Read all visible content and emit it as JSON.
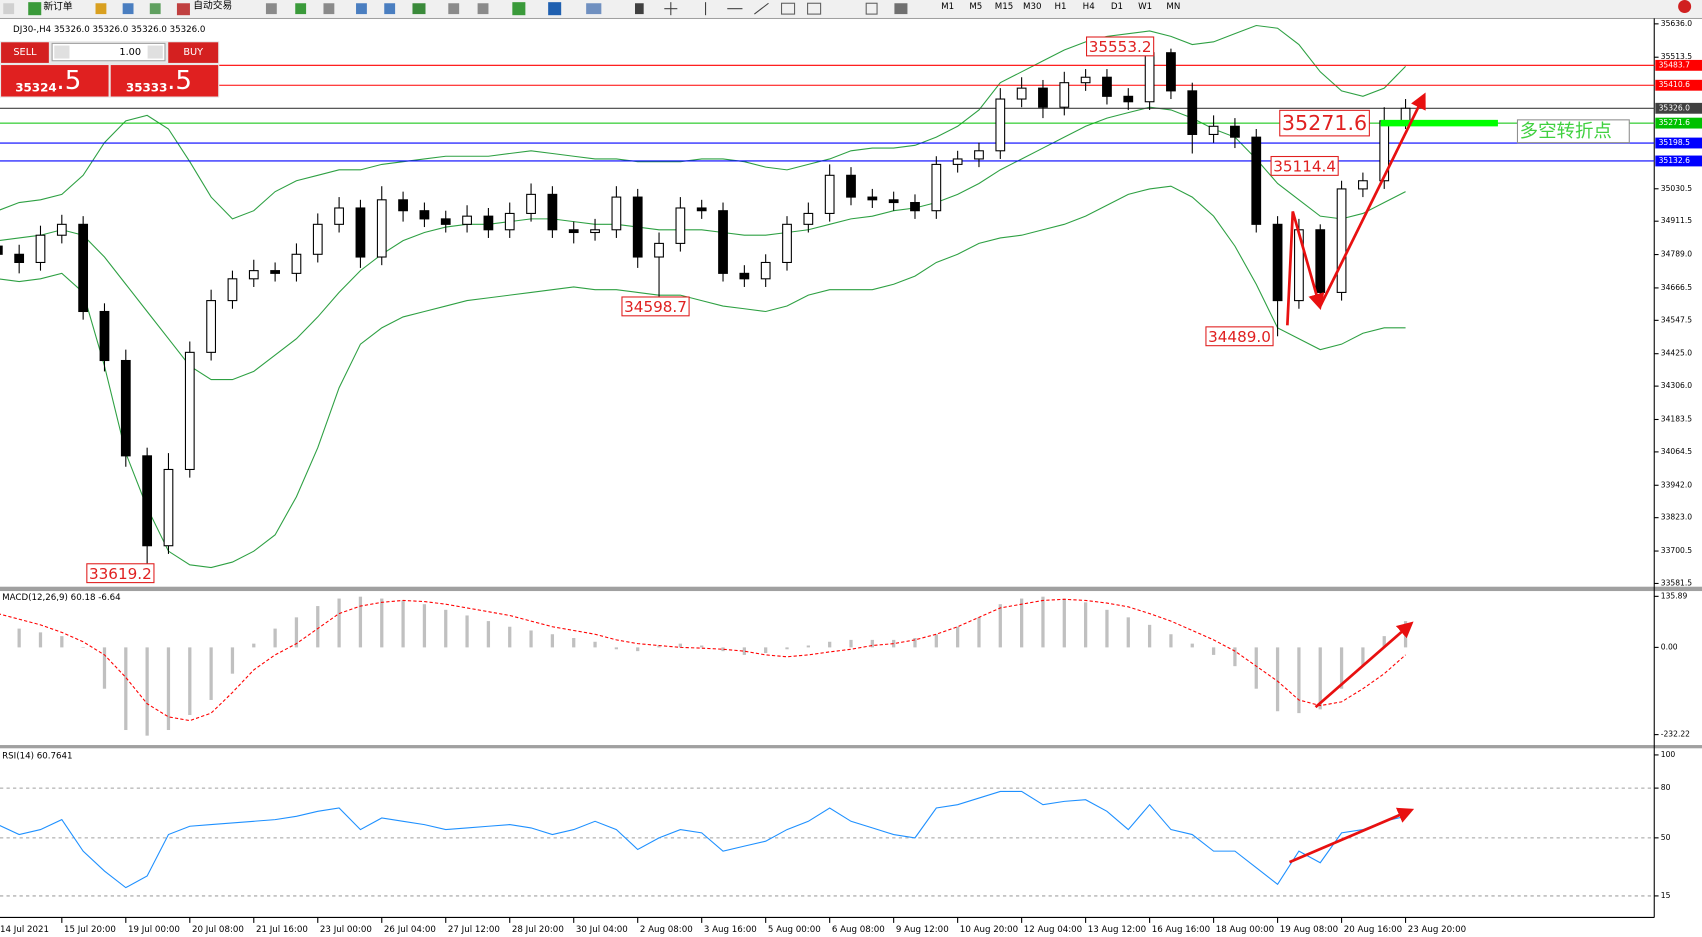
{
  "toolbar": {
    "new_order": "新订单",
    "auto_trade": "自动交易",
    "timeframes": [
      "M1",
      "M5",
      "M15",
      "M30",
      "H1",
      "H4",
      "D1",
      "W1",
      "MN"
    ]
  },
  "trade_panel": {
    "sell": "SELL",
    "buy": "BUY",
    "lots": "1.00",
    "bid": [
      "35324",
      ".5"
    ],
    "ask": [
      "35333",
      ".5"
    ]
  },
  "chart_data": [
    {
      "type": "candlestick",
      "title": "DJ30-,H4  35326.0 35326.0 35326.0 35326.0",
      "categories": [
        "14 Jul 2021",
        null,
        null,
        "15 Jul 20:00",
        null,
        null,
        "19 Jul 00:00",
        null,
        null,
        "20 Jul 08:00",
        null,
        null,
        "21 Jul 16:00",
        null,
        null,
        "23 Jul 00:00",
        null,
        null,
        "26 Jul 04:00",
        null,
        null,
        "27 Jul 12:00",
        null,
        null,
        "28 Jul 20:00",
        null,
        null,
        "30 Jul 04:00",
        null,
        null,
        "2 Aug 08:00",
        null,
        null,
        "3 Aug 16:00",
        null,
        null,
        "5 Aug 00:00",
        null,
        null,
        "6 Aug 08:00",
        null,
        null,
        "9 Aug 12:00",
        null,
        null,
        "10 Aug 20:00",
        null,
        null,
        "12 Aug 04:00",
        null,
        null,
        "13 Aug 12:00",
        null,
        null,
        "16 Aug 16:00",
        null,
        null,
        "18 Aug 00:00",
        null,
        null,
        "19 Aug 08:00",
        null,
        null,
        "20 Aug 16:00",
        null,
        null,
        "23 Aug 20:00"
      ],
      "open": [
        34820,
        34790,
        34760,
        34860,
        34900,
        34580,
        34400,
        34050,
        33720,
        34000,
        34430,
        34620,
        34700,
        34730,
        34720,
        34790,
        34900,
        34960,
        34780,
        34990,
        34950,
        34920,
        34900,
        34930,
        34880,
        34940,
        35010,
        34880,
        34870,
        34880,
        35000,
        34780,
        34830,
        34960,
        34950,
        34720,
        34700,
        34760,
        34900,
        34940,
        35080,
        35000,
        34990,
        34980,
        34950,
        35120,
        35140,
        35170,
        35360,
        35400,
        35330,
        35420,
        35440,
        35370,
        35350,
        35530,
        35390,
        35230,
        35260,
        35220,
        34900,
        34620,
        34880,
        34650,
        35030,
        35060,
        35280
      ],
      "high": [
        34855,
        34825,
        34895,
        34935,
        34930,
        34610,
        34440,
        34080,
        34060,
        34470,
        34660,
        34730,
        34770,
        34760,
        34830,
        34940,
        35000,
        34990,
        35040,
        35020,
        34980,
        34950,
        34970,
        34960,
        34980,
        35050,
        35040,
        34910,
        34920,
        35040,
        35030,
        34870,
        35000,
        34990,
        34980,
        34750,
        34790,
        34930,
        34980,
        35120,
        35110,
        35030,
        35020,
        35010,
        35150,
        35170,
        35200,
        35400,
        35440,
        35430,
        35460,
        35470,
        35470,
        35400,
        35553.2,
        35545,
        35420,
        35300,
        35290,
        35250,
        34930,
        34920,
        34900,
        35060,
        35090,
        35330,
        35360
      ],
      "low": [
        34755,
        34720,
        34730,
        34830,
        34550,
        34360,
        34010,
        33619.2,
        33690,
        33970,
        34400,
        34590,
        34670,
        34690,
        34690,
        34760,
        34870,
        34740,
        34750,
        34910,
        34890,
        34870,
        34870,
        34850,
        34850,
        34910,
        34850,
        34830,
        34840,
        34850,
        34740,
        34598.7,
        34800,
        34920,
        34690,
        34670,
        34670,
        34730,
        34870,
        34910,
        34970,
        34960,
        34950,
        34920,
        34920,
        35090,
        35110,
        35140,
        35330,
        35290,
        35300,
        35390,
        35340,
        35320,
        35320,
        35360,
        35160,
        35200,
        35180,
        34870,
        34489,
        34590,
        34610,
        34620,
        35000,
        35030,
        35250
      ],
      "close": [
        34790,
        34760,
        34860,
        34900,
        34580,
        34400,
        34050,
        33720,
        34000,
        34430,
        34620,
        34700,
        34730,
        34720,
        34790,
        34900,
        34960,
        34780,
        34990,
        34950,
        34920,
        34900,
        34930,
        34880,
        34940,
        35010,
        34880,
        34870,
        34880,
        35000,
        34780,
        34830,
        34960,
        34950,
        34720,
        34700,
        34760,
        34900,
        34940,
        35080,
        35000,
        34990,
        34980,
        34950,
        35120,
        35140,
        35170,
        35360,
        35400,
        35330,
        35420,
        35440,
        35370,
        35350,
        35530,
        35390,
        35230,
        35260,
        35220,
        34900,
        34620,
        34880,
        34650,
        35030,
        35060,
        35280,
        35326
      ],
      "up_color": "#ffffff",
      "down_color": "#000000",
      "wick_color": "#000000",
      "bands": [
        {
          "color": "#2ea043",
          "values": [
            34950,
            34980,
            34990,
            35010,
            35080,
            35200,
            35280,
            35300,
            35250,
            35130,
            35000,
            34920,
            34950,
            35020,
            35060,
            35080,
            35100,
            35100,
            35120,
            35130,
            35140,
            35150,
            35150,
            35150,
            35160,
            35170,
            35160,
            35150,
            35140,
            35140,
            35130,
            35130,
            35130,
            35140,
            35140,
            35130,
            35110,
            35100,
            35120,
            35140,
            35170,
            35180,
            35180,
            35190,
            35220,
            35260,
            35320,
            35420,
            35460,
            35500,
            35540,
            35570,
            35590,
            35600,
            35610,
            35590,
            35560,
            35570,
            35600,
            35630,
            35620,
            35560,
            35460,
            35390,
            35370,
            35400,
            35480
          ]
        },
        {
          "color": "#2ea043",
          "values": [
            34840,
            34850,
            34860,
            34880,
            34860,
            34780,
            34680,
            34580,
            34480,
            34380,
            34330,
            34330,
            34360,
            34420,
            34480,
            34560,
            34650,
            34730,
            34790,
            34840,
            34870,
            34890,
            34900,
            34900,
            34910,
            34920,
            34920,
            34910,
            34900,
            34900,
            34890,
            34880,
            34880,
            34880,
            34870,
            34860,
            34860,
            34870,
            34880,
            34900,
            34920,
            34930,
            34950,
            34960,
            34980,
            35010,
            35050,
            35100,
            35140,
            35180,
            35220,
            35260,
            35290,
            35310,
            35330,
            35320,
            35290,
            35250,
            35220,
            35140,
            35050,
            34990,
            34930,
            34920,
            34940,
            34980,
            35020
          ]
        },
        {
          "color": "#2ea043",
          "values": [
            34700,
            34690,
            34700,
            34720,
            34650,
            34380,
            34060,
            33860,
            33700,
            33650,
            33640,
            33660,
            33700,
            33760,
            33900,
            34080,
            34300,
            34460,
            34520,
            34560,
            34580,
            34600,
            34620,
            34630,
            34640,
            34650,
            34660,
            34670,
            34660,
            34660,
            34650,
            34640,
            34640,
            34620,
            34600,
            34590,
            34580,
            34600,
            34640,
            34660,
            34660,
            34660,
            34680,
            34710,
            34760,
            34790,
            34830,
            34850,
            34860,
            34880,
            34900,
            34930,
            34970,
            35010,
            35030,
            35040,
            35000,
            34930,
            34820,
            34680,
            34520,
            34480,
            34440,
            34460,
            34500,
            34520,
            34520
          ]
        }
      ],
      "levels": [
        {
          "value": 35483.7,
          "color": "#ff0000"
        },
        {
          "value": 35410.6,
          "color": "#ff0000"
        },
        {
          "value": 35326,
          "label": "35326.0",
          "color": "#404040"
        },
        {
          "value": 35271.6,
          "color": "#00c000"
        },
        {
          "value": 35198.5,
          "color": "#0000ff"
        },
        {
          "value": 35132.6,
          "color": "#0000ff"
        }
      ],
      "annotations": [
        35553.2,
        34598.7,
        33619.2,
        35114.4,
        {
          "value": 34489,
          "label": "34489.0"
        },
        35271.6
      ],
      "callout": "多空转折点",
      "ylim": [
        33581.5,
        35636.0
      ],
      "yticks": [
        {
          "value": 35636,
          "label": "35636.0"
        },
        {
          "value": 35513.5,
          "label": "35513.5"
        },
        35030.5,
        34911.5,
        {
          "value": 34789,
          "label": "34789.0"
        },
        34666.5,
        34547.5,
        {
          "value": 34425,
          "label": "34425.0"
        },
        {
          "value": 34306,
          "label": "34306.0"
        },
        34183.5,
        34064.5,
        {
          "value": 33942,
          "label": "33942.0"
        },
        {
          "value": 33823,
          "label": "33823.0"
        },
        33700.5,
        33581.5
      ]
    },
    {
      "type": "macd",
      "title": "MACD(12,26,9) 60.18 -6.64",
      "histogram": {
        "color": "#c0c0c0",
        "values": [
          55,
          50,
          40,
          30,
          0,
          -110,
          -220,
          -235,
          -220,
          -180,
          -140,
          -70,
          10,
          50,
          80,
          110,
          130,
          135,
          130,
          125,
          115,
          100,
          85,
          70,
          55,
          45,
          35,
          25,
          15,
          -5,
          -10,
          5,
          10,
          5,
          -10,
          -20,
          -15,
          -5,
          5,
          15,
          20,
          20,
          20,
          25,
          35,
          55,
          80,
          115,
          130,
          135,
          130,
          120,
          100,
          80,
          60,
          35,
          10,
          -20,
          -50,
          -110,
          -170,
          -175,
          -165,
          -110,
          -50,
          30,
          70
        ]
      },
      "signal": {
        "color": "#ff0000",
        "values": [
          90,
          75,
          60,
          40,
          15,
          -20,
          -80,
          -150,
          -185,
          -195,
          -175,
          -120,
          -60,
          -20,
          10,
          50,
          90,
          110,
          120,
          125,
          122,
          115,
          105,
          95,
          85,
          70,
          55,
          45,
          35,
          20,
          10,
          5,
          0,
          -2,
          -5,
          -10,
          -20,
          -25,
          -20,
          -12,
          -5,
          5,
          10,
          20,
          35,
          55,
          80,
          105,
          115,
          125,
          128,
          125,
          118,
          108,
          90,
          70,
          45,
          20,
          -10,
          -50,
          -90,
          -140,
          -155,
          -145,
          -110,
          -70,
          -20
        ]
      },
      "ylim": [
        -260,
        150
      ],
      "yticks": [
        135.89,
        {
          "value": 0,
          "label": "0.00"
        },
        -232.22
      ]
    },
    {
      "type": "line",
      "title": "RSI(14) 60.7641",
      "series": [
        {
          "color": "#1e90ff",
          "values": [
            58,
            52,
            55,
            61,
            42,
            30,
            20,
            27,
            52,
            57,
            58,
            59,
            60,
            61,
            63,
            66,
            68,
            55,
            62,
            60,
            58,
            55,
            56,
            57,
            58,
            56,
            52,
            55,
            60,
            55,
            43,
            50,
            55,
            53,
            42,
            45,
            48,
            55,
            60,
            68,
            60,
            56,
            52,
            50,
            68,
            70,
            74,
            78,
            78,
            70,
            72,
            73,
            66,
            55,
            70,
            55,
            52,
            42,
            42,
            32,
            22,
            42,
            35,
            53,
            55,
            60,
            63
          ]
        }
      ],
      "levels": [
        80,
        50,
        15
      ],
      "ylim": [
        2,
        104
      ],
      "yticks": [
        100,
        80,
        50,
        15
      ]
    }
  ]
}
